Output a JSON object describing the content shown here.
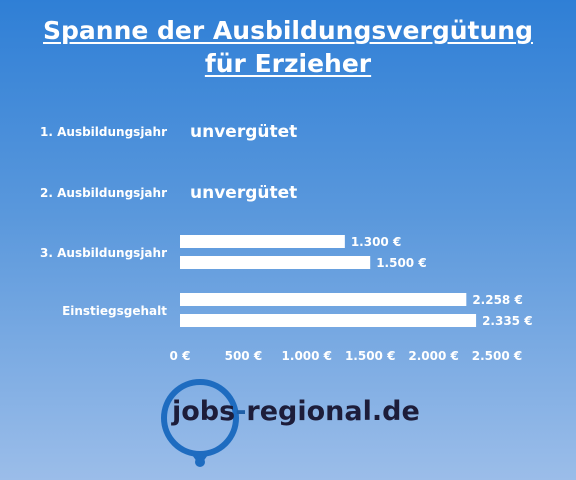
{
  "title_line1": "Spanne der Ausbildungsvergütung",
  "title_line2": "für Erzieher",
  "colors": {
    "bar": "#ffffff",
    "text": "#ffffff",
    "logo_ring": "#1e6cc0",
    "logo_text": "#1d1d3a"
  },
  "logo": {
    "part1": "jobs",
    "dash": "-",
    "part2": "regional.de"
  },
  "chart_data": {
    "type": "bar",
    "orientation": "horizontal",
    "categories": [
      "1. Ausbildungsjahr",
      "2. Ausbildungsjahr",
      "3. Ausbildungsjahr",
      "Einstiegsgehalt"
    ],
    "series": [
      {
        "values": [
          null,
          null,
          1300,
          2258
        ]
      },
      {
        "values": [
          null,
          null,
          1500,
          2335
        ]
      }
    ],
    "category_notes": [
      "unvergütet",
      "unvergütet",
      "",
      ""
    ],
    "data_labels": [
      [
        "",
        ""
      ],
      [
        "",
        ""
      ],
      [
        "1.300 €",
        "1.500 €"
      ],
      [
        "2.258 €",
        "2.335 €"
      ]
    ],
    "x_ticks": [
      0,
      500,
      1000,
      1500,
      2000,
      2500
    ],
    "x_tick_labels": [
      "0 €",
      "500 €",
      "1.000 €",
      "1.500 €",
      "2.000 €",
      "2.500 €"
    ],
    "xlim": [
      0,
      2500
    ],
    "grid": false,
    "legend": "none"
  }
}
